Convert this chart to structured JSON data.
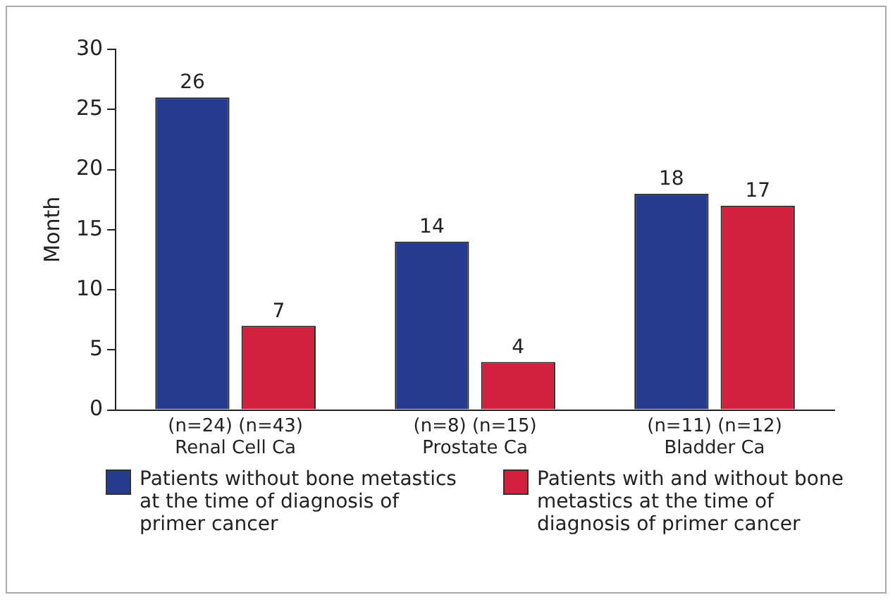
{
  "chart_data": {
    "type": "bar",
    "ylabel": "Month",
    "categories": [
      "(n=24) (n=43)\nRenal Cell Ca",
      "(n=8) (n=15)\nProstate Ca",
      "(n=11) (n=12)\nBladder Ca"
    ],
    "series": [
      {
        "name": "Patients without bone metastics at the time of diagnosis of primer cancer",
        "color": "#263a8e",
        "values": [
          26,
          14,
          18
        ]
      },
      {
        "name": "Patients with and without bone metastics at the time of diagnosis of primer cancer",
        "color": "#d2203f",
        "values": [
          7,
          4,
          17
        ]
      }
    ],
    "ylim": [
      0,
      30
    ],
    "yticks": [
      0,
      5,
      10,
      15,
      20,
      25,
      30
    ],
    "grid": false,
    "legend": "bottom",
    "data_labels": true
  }
}
